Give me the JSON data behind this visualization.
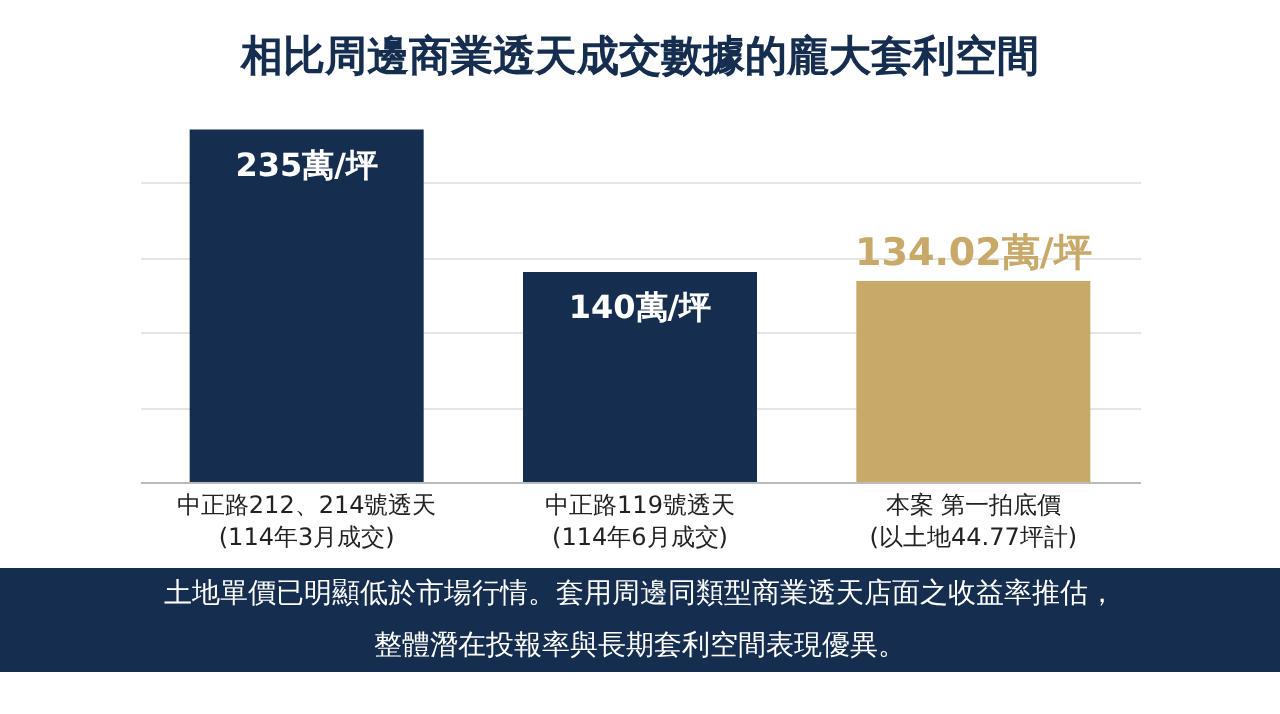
{
  "chart_data": {
    "type": "bar",
    "title": "相比周邊商業透天成交數據的龐大套利空間",
    "categories": [
      "中正路212、214號透天\n(114年3月成交)",
      "中正路119號透天\n(114年6月成交)",
      "本案 第一拍底價\n(以土地44.77坪計)"
    ],
    "values": [
      235,
      140,
      134.02
    ],
    "colors": [
      "#152d4f",
      "#152d4f",
      "#c9a96a"
    ],
    "value_labels": [
      "235萬/坪",
      "140萬/坪",
      "134.02萬/坪"
    ],
    "grid": "y",
    "tick_labels": "x",
    "annotations": [
      "土地單價已明顯低於市場行情。套用周邊同類型商業透天店面之收益率推估，",
      "整體潛在投報率與長期套利空間表現優異。"
    ]
  }
}
